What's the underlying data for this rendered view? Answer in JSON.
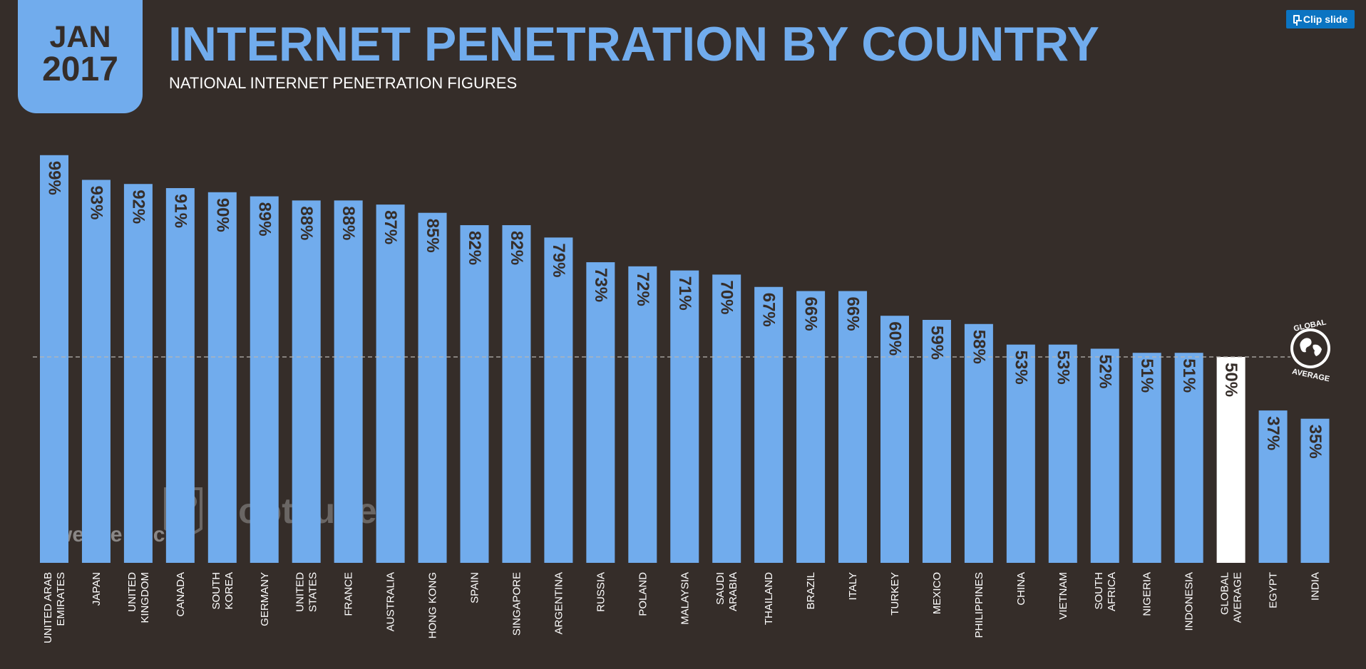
{
  "badge": {
    "month": "JAN",
    "year": "2017"
  },
  "header": {
    "title": "INTERNET PENETRATION BY COUNTRY",
    "subtitle": "NATIONAL INTERNET PENETRATION FIGURES"
  },
  "clip_button": {
    "label": "Clip slide"
  },
  "colors": {
    "background": "#352d29",
    "bar": "#71aced",
    "highlight_bar": "#ffffff",
    "bar_label": "#352d29"
  },
  "global_average_badge": {
    "top_text": "GLOBAL",
    "bottom_text": "AVERAGE"
  },
  "watermarks": {
    "we_are_social": "we are social",
    "hootsuite": "Hootsuite"
  },
  "chart_data": {
    "type": "bar",
    "categories": [
      "UNITED ARAB\nEMIRATES",
      "JAPAN",
      "UNITED\nKINGDOM",
      "CANADA",
      "SOUTH\nKOREA",
      "GERMANY",
      "UNITED\nSTATES",
      "FRANCE",
      "AUSTRALIA",
      "HONG KONG",
      "SPAIN",
      "SINGAPORE",
      "ARGENTINA",
      "RUSSIA",
      "POLAND",
      "MALAYSIA",
      "SAUDI\nARABIA",
      "THAILAND",
      "BRAZIL",
      "ITALY",
      "TURKEY",
      "MEXICO",
      "PHILIPPINES",
      "CHINA",
      "VIETNAM",
      "SOUTH\nAFRICA",
      "NIGERIA",
      "INDONESIA",
      "GLOBAL\nAVERAGE",
      "EGYPT",
      "INDIA"
    ],
    "values": [
      99,
      93,
      92,
      91,
      90,
      89,
      88,
      88,
      87,
      85,
      82,
      82,
      79,
      73,
      72,
      71,
      70,
      67,
      66,
      66,
      60,
      59,
      58,
      53,
      53,
      52,
      51,
      51,
      50,
      37,
      35
    ],
    "value_labels": [
      "99%",
      "93%",
      "92%",
      "91%",
      "90%",
      "89%",
      "88%",
      "88%",
      "87%",
      "85%",
      "82%",
      "82%",
      "79%",
      "73%",
      "72%",
      "71%",
      "70%",
      "67%",
      "66%",
      "66%",
      "60%",
      "59%",
      "58%",
      "53%",
      "53%",
      "52%",
      "51%",
      "51%",
      "50%",
      "37%",
      "35%"
    ],
    "highlight_category": "GLOBAL\nAVERAGE",
    "reference_line": 50,
    "ylim": [
      0,
      100
    ]
  }
}
